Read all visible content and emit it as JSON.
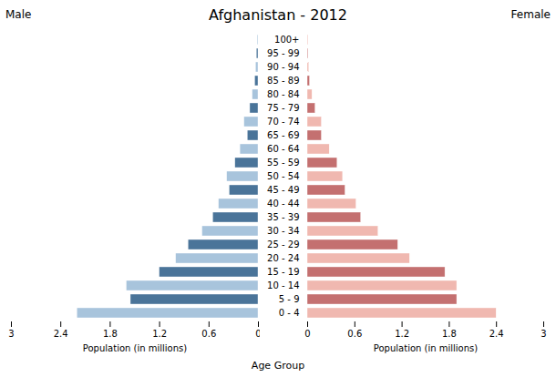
{
  "chart_data": [
    {
      "type": "bar",
      "orientation": "horizontal",
      "title": "Afghanistan - 2012",
      "categories": [
        "0 - 4",
        "5 - 9",
        "10 - 14",
        "15 - 19",
        "20 - 24",
        "25 - 29",
        "30 - 34",
        "35 - 39",
        "40 - 44",
        "45 - 49",
        "50 - 54",
        "55 - 59",
        "60 - 64",
        "65 - 69",
        "70 - 74",
        "75 - 79",
        "80 - 84",
        "85 - 89",
        "90 - 94",
        "95 - 99",
        "100+"
      ],
      "series": [
        {
          "name": "Male",
          "colors": [
            "#a8c4dc",
            "#4a7499",
            "#a8c4dc",
            "#4a7499",
            "#a8c4dc",
            "#4a7499",
            "#a8c4dc",
            "#4a7499",
            "#a8c4dc",
            "#4a7499",
            "#a8c4dc",
            "#4a7499",
            "#a8c4dc",
            "#4a7499",
            "#a8c4dc",
            "#4a7499",
            "#a8c4dc",
            "#4a7499",
            "#a8c4dc",
            "#4a7499",
            "#a8c4dc"
          ],
          "values": [
            2.2,
            1.55,
            1.6,
            1.2,
            1.0,
            0.85,
            0.68,
            0.55,
            0.48,
            0.35,
            0.38,
            0.28,
            0.22,
            0.13,
            0.17,
            0.1,
            0.07,
            0.04,
            0.03,
            0.02,
            0.01
          ]
        }
      ],
      "xlabel": "Population (in millions)",
      "xlim": [
        3,
        0
      ],
      "xticks": [
        3,
        2.4,
        1.8,
        1.2,
        0.6,
        0
      ],
      "tick_labels": "x"
    },
    {
      "type": "bar",
      "orientation": "horizontal",
      "categories": [
        "0 - 4",
        "5 - 9",
        "10 - 14",
        "15 - 19",
        "20 - 24",
        "25 - 29",
        "30 - 34",
        "35 - 39",
        "40 - 44",
        "45 - 49",
        "50 - 54",
        "55 - 59",
        "60 - 64",
        "65 - 69",
        "70 - 74",
        "75 - 79",
        "80 - 84",
        "85 - 89",
        "90 - 94",
        "95 - 99",
        "100+"
      ],
      "series": [
        {
          "name": "Female",
          "colors": [
            "#f0b8b0",
            "#c47070",
            "#f0b8b0",
            "#c47070",
            "#f0b8b0",
            "#c47070",
            "#f0b8b0",
            "#c47070",
            "#f0b8b0",
            "#c47070",
            "#f0b8b0",
            "#c47070",
            "#f0b8b0",
            "#c47070",
            "#f0b8b0",
            "#c47070",
            "#f0b8b0",
            "#c47070",
            "#f0b8b0",
            "#c47070",
            "#f0b8b0"
          ],
          "values": [
            2.4,
            1.9,
            1.9,
            1.75,
            1.3,
            1.15,
            0.9,
            0.68,
            0.62,
            0.48,
            0.45,
            0.38,
            0.28,
            0.18,
            0.18,
            0.1,
            0.06,
            0.03,
            0.02,
            0.01,
            0.01
          ]
        }
      ],
      "xlabel": "Population (in millions)",
      "ylabel": "Age Group",
      "xlim": [
        0,
        3
      ],
      "xticks": [
        0,
        0.6,
        1.2,
        1.8,
        2.4,
        3
      ]
    }
  ]
}
